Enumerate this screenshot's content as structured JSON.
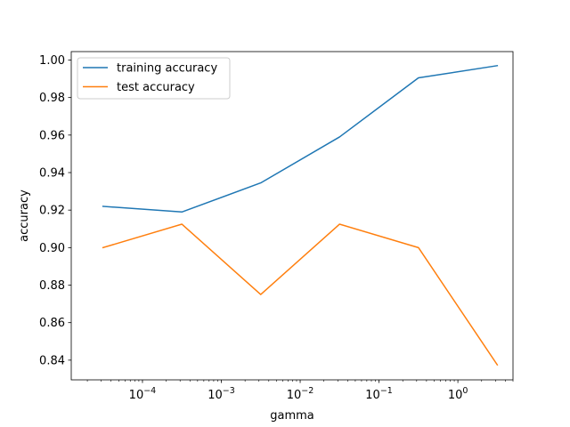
{
  "chart_data": {
    "type": "line",
    "title": "",
    "xlabel": "gamma",
    "ylabel": "accuracy",
    "xscale": "log",
    "x": [
      3.16e-05,
      0.000316,
      0.00316,
      0.0316,
      0.316,
      3.16
    ],
    "xlim": [
      1.25e-05,
      5.0
    ],
    "ylim": [
      0.8295,
      1.0045
    ],
    "grid": false,
    "legend_position": "upper-left",
    "series": [
      {
        "name": "training accuracy",
        "color": "#1f77b4",
        "values": [
          0.922,
          0.919,
          0.9345,
          0.959,
          0.9905,
          0.997
        ]
      },
      {
        "name": "test accuracy",
        "color": "#ff7f0e",
        "values": [
          0.9,
          0.9125,
          0.875,
          0.9125,
          0.9,
          0.8375
        ]
      }
    ],
    "y_ticks": [
      {
        "value": 0.84,
        "label": "0.84"
      },
      {
        "value": 0.86,
        "label": "0.86"
      },
      {
        "value": 0.88,
        "label": "0.88"
      },
      {
        "value": 0.9,
        "label": "0.90"
      },
      {
        "value": 0.92,
        "label": "0.92"
      },
      {
        "value": 0.94,
        "label": "0.94"
      },
      {
        "value": 0.96,
        "label": "0.96"
      },
      {
        "value": 0.98,
        "label": "0.98"
      },
      {
        "value": 1.0,
        "label": "1.00"
      }
    ],
    "x_major_ticks": [
      {
        "value": 0.0001,
        "base": "10",
        "exp": "−4"
      },
      {
        "value": 0.001,
        "base": "10",
        "exp": "−3"
      },
      {
        "value": 0.01,
        "base": "10",
        "exp": "−2"
      },
      {
        "value": 0.1,
        "base": "10",
        "exp": "−1"
      },
      {
        "value": 1,
        "base": "10",
        "exp": "0"
      }
    ]
  }
}
